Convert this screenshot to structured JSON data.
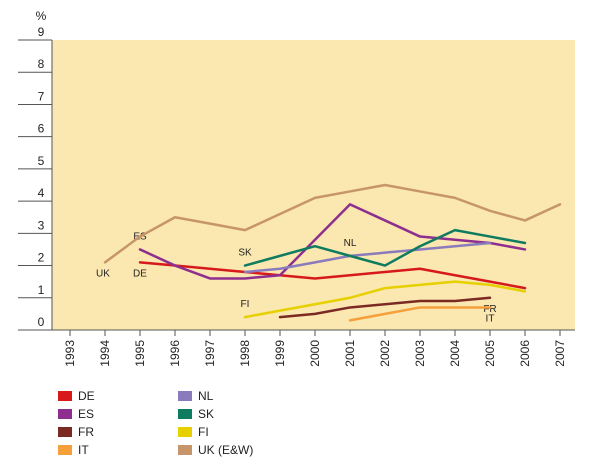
{
  "chart_data": {
    "type": "line",
    "ylabel": "%",
    "ylim": [
      0,
      9
    ],
    "yticks": [
      0,
      1,
      2,
      3,
      4,
      5,
      6,
      7,
      8,
      9
    ],
    "categories": [
      "1993",
      "1994",
      "1995",
      "1996",
      "1997",
      "1998",
      "1999",
      "2000",
      "2001",
      "2002",
      "2003",
      "2004",
      "2005",
      "2006",
      "2007"
    ],
    "series": [
      {
        "name": "DE",
        "color": "#d7191c",
        "values": [
          null,
          null,
          2.1,
          2.0,
          1.9,
          1.8,
          1.7,
          1.6,
          1.7,
          1.8,
          1.9,
          1.7,
          1.5,
          1.3,
          null
        ],
        "label": "DE",
        "labelYear": "1995",
        "labelPos": "below"
      },
      {
        "name": "ES",
        "color": "#8e2f8f",
        "values": [
          null,
          null,
          2.5,
          2.0,
          1.6,
          1.6,
          1.7,
          2.8,
          3.9,
          3.4,
          2.9,
          2.8,
          2.7,
          2.5,
          null
        ],
        "label": "ES",
        "labelYear": "1995",
        "labelPos": "above"
      },
      {
        "name": "FR",
        "color": "#7a2a22",
        "values": [
          null,
          null,
          null,
          null,
          null,
          null,
          0.4,
          0.5,
          0.7,
          0.8,
          0.9,
          0.9,
          1.0,
          null,
          null
        ],
        "label": "FR",
        "labelYear": "2005",
        "labelPos": "below"
      },
      {
        "name": "IT",
        "color": "#f6a03c",
        "values": [
          null,
          null,
          null,
          null,
          null,
          null,
          null,
          null,
          0.3,
          0.5,
          0.7,
          0.7,
          0.7,
          null,
          null
        ],
        "label": "IT",
        "labelYear": "2005",
        "labelPos": "below"
      },
      {
        "name": "NL",
        "color": "#8a7bbd",
        "values": [
          null,
          null,
          null,
          null,
          null,
          1.8,
          1.9,
          2.1,
          2.3,
          2.4,
          2.5,
          2.6,
          2.7,
          null,
          null
        ],
        "label": "NL",
        "labelYear": "2001",
        "labelPos": "above"
      },
      {
        "name": "SK",
        "color": "#0f7b5f",
        "values": [
          null,
          null,
          null,
          null,
          null,
          2.0,
          2.3,
          2.6,
          2.3,
          2.0,
          2.6,
          3.1,
          2.9,
          2.7,
          null
        ],
        "label": "SK",
        "labelYear": "1998",
        "labelPos": "above"
      },
      {
        "name": "FI",
        "color": "#e6d000",
        "values": [
          null,
          null,
          null,
          null,
          null,
          0.4,
          0.6,
          0.8,
          1.0,
          1.3,
          1.4,
          1.5,
          1.4,
          1.2,
          null
        ],
        "label": "FI",
        "labelYear": "1998",
        "labelPos": "above"
      },
      {
        "name": "UK (E&W)",
        "color": "#c7956a",
        "values": [
          null,
          2.1,
          2.9,
          3.5,
          3.3,
          3.1,
          3.6,
          4.1,
          4.3,
          4.5,
          4.3,
          4.1,
          3.7,
          3.4,
          3.9
        ],
        "label": "UK",
        "labelYear": "1994",
        "labelPos": "below"
      }
    ],
    "legend": [
      {
        "name": "DE",
        "color": "#d7191c"
      },
      {
        "name": "ES",
        "color": "#8e2f8f"
      },
      {
        "name": "FR",
        "color": "#7a2a22"
      },
      {
        "name": "IT",
        "color": "#f6a03c"
      },
      {
        "name": "NL",
        "color": "#8a7bbd"
      },
      {
        "name": "SK",
        "color": "#0f7b5f"
      },
      {
        "name": "FI",
        "color": "#e6d000"
      },
      {
        "name": "UK (E&W)",
        "color": "#c7956a"
      }
    ],
    "legend_position": "bottom-left",
    "grid": false,
    "plot_bg": "#fbe7b0"
  }
}
